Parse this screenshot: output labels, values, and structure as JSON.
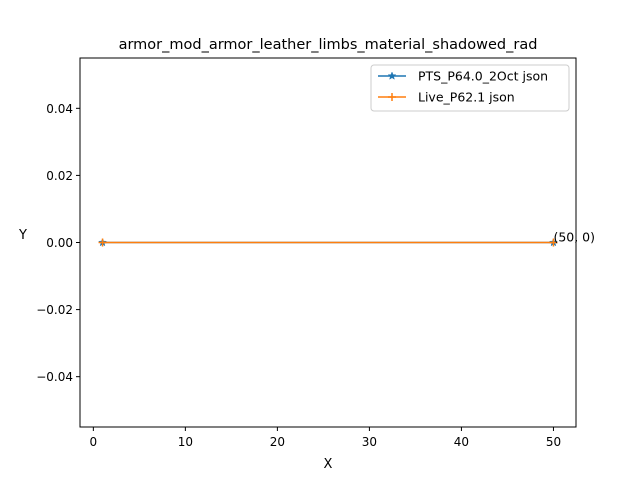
{
  "chart_data": {
    "type": "line",
    "title": "armor_mod_armor_leather_limbs_material_shadowed_rad",
    "xlabel": "X",
    "ylabel": "Y",
    "xlim": [
      -1.45,
      52.45
    ],
    "ylim": [
      -0.055,
      0.055
    ],
    "xticks": [
      0,
      10,
      20,
      30,
      40,
      50
    ],
    "xtick_labels": [
      "0",
      "10",
      "20",
      "30",
      "40",
      "50"
    ],
    "yticks": [
      -0.04,
      -0.02,
      0.0,
      0.02,
      0.04
    ],
    "ytick_labels": [
      "−0.04",
      "−0.02",
      "0.00",
      "0.02",
      "0.04"
    ],
    "grid": false,
    "legend_position": "top-right",
    "series": [
      {
        "name": "PTS_P64.0_2Oct json",
        "color": "#1f77b4",
        "marker": "star",
        "x": [
          1,
          50
        ],
        "y": [
          0,
          0
        ]
      },
      {
        "name": "Live_P62.1 json",
        "color": "#ff7f0e",
        "marker": "plus",
        "x": [
          1,
          50
        ],
        "y": [
          0,
          0
        ]
      }
    ],
    "annotations": [
      {
        "text": "(50, 0)",
        "x": 50,
        "y": 0
      }
    ]
  }
}
